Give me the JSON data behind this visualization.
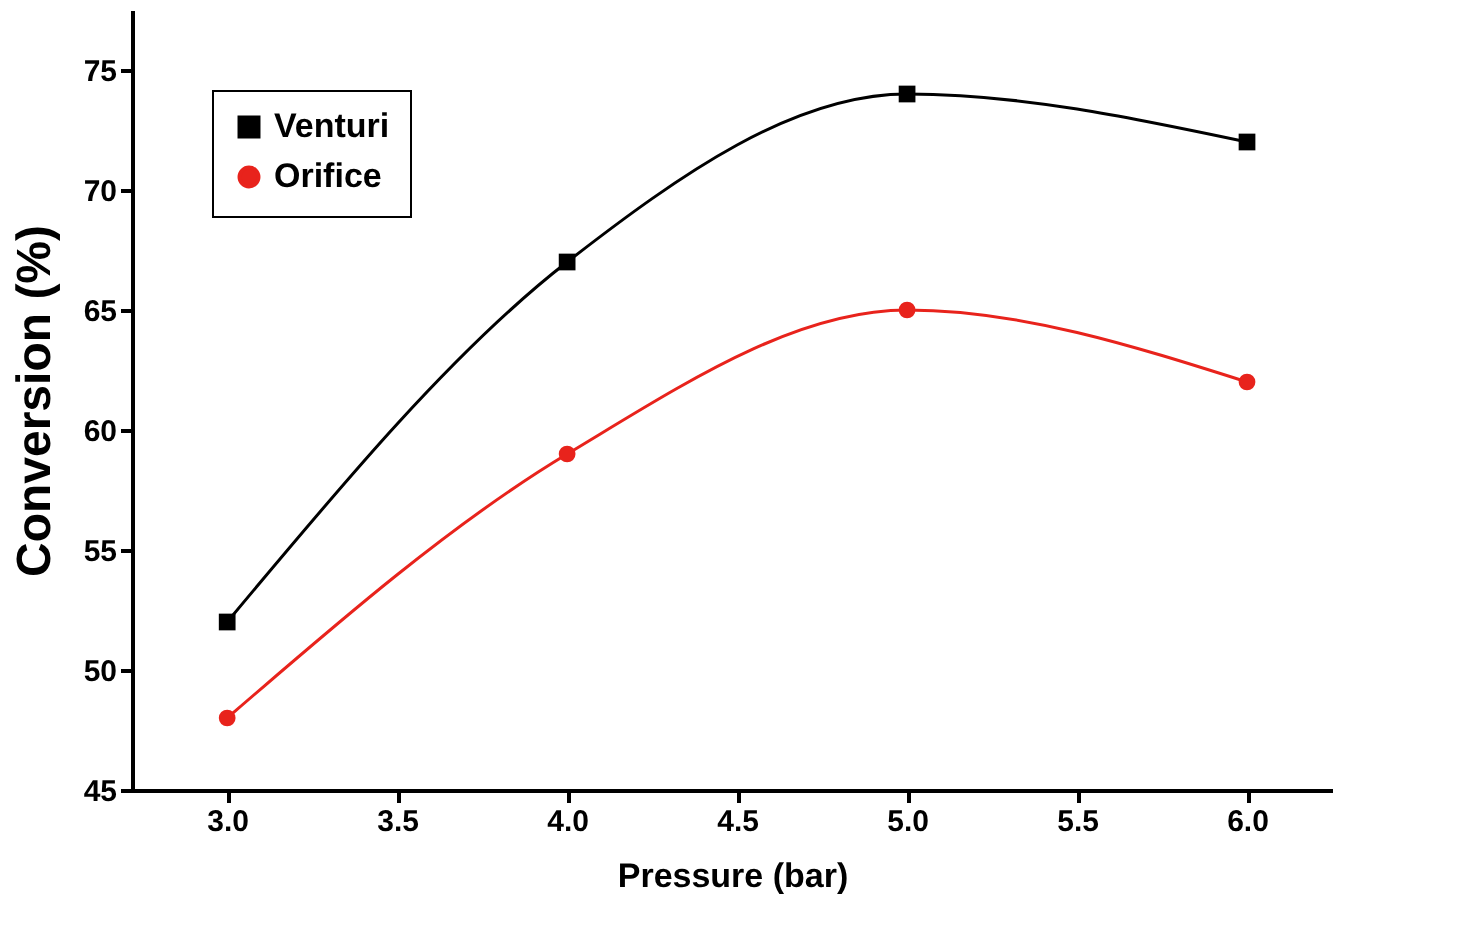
{
  "chart_data": {
    "type": "line",
    "xlabel": "Pressure (bar)",
    "ylabel": "Conversion (%)",
    "x": [
      3.0,
      4.0,
      5.0,
      6.0
    ],
    "series": [
      {
        "name": "Venturi",
        "color": "#000000",
        "marker": "square",
        "values": [
          52,
          67,
          74,
          72
        ]
      },
      {
        "name": "Orifice",
        "color": "#e8231c",
        "marker": "circle",
        "values": [
          48,
          59,
          65,
          62
        ]
      }
    ],
    "xlim": [
      2.72,
      6.25
    ],
    "xticks": [
      {
        "value": 3.0,
        "label": "3.0"
      },
      {
        "value": 3.5,
        "label": "3.5"
      },
      {
        "value": 4.0,
        "label": "4.0"
      },
      {
        "value": 4.5,
        "label": "4.5"
      },
      {
        "value": 5.0,
        "label": "5.0"
      },
      {
        "value": 5.5,
        "label": "5.5"
      },
      {
        "value": 6.0,
        "label": "6.0"
      }
    ],
    "ylim": [
      45,
      77.5
    ],
    "yticks": [
      45,
      50,
      55,
      60,
      65,
      70,
      75
    ],
    "grid": false,
    "legend": "top left",
    "line_style": "solid"
  }
}
